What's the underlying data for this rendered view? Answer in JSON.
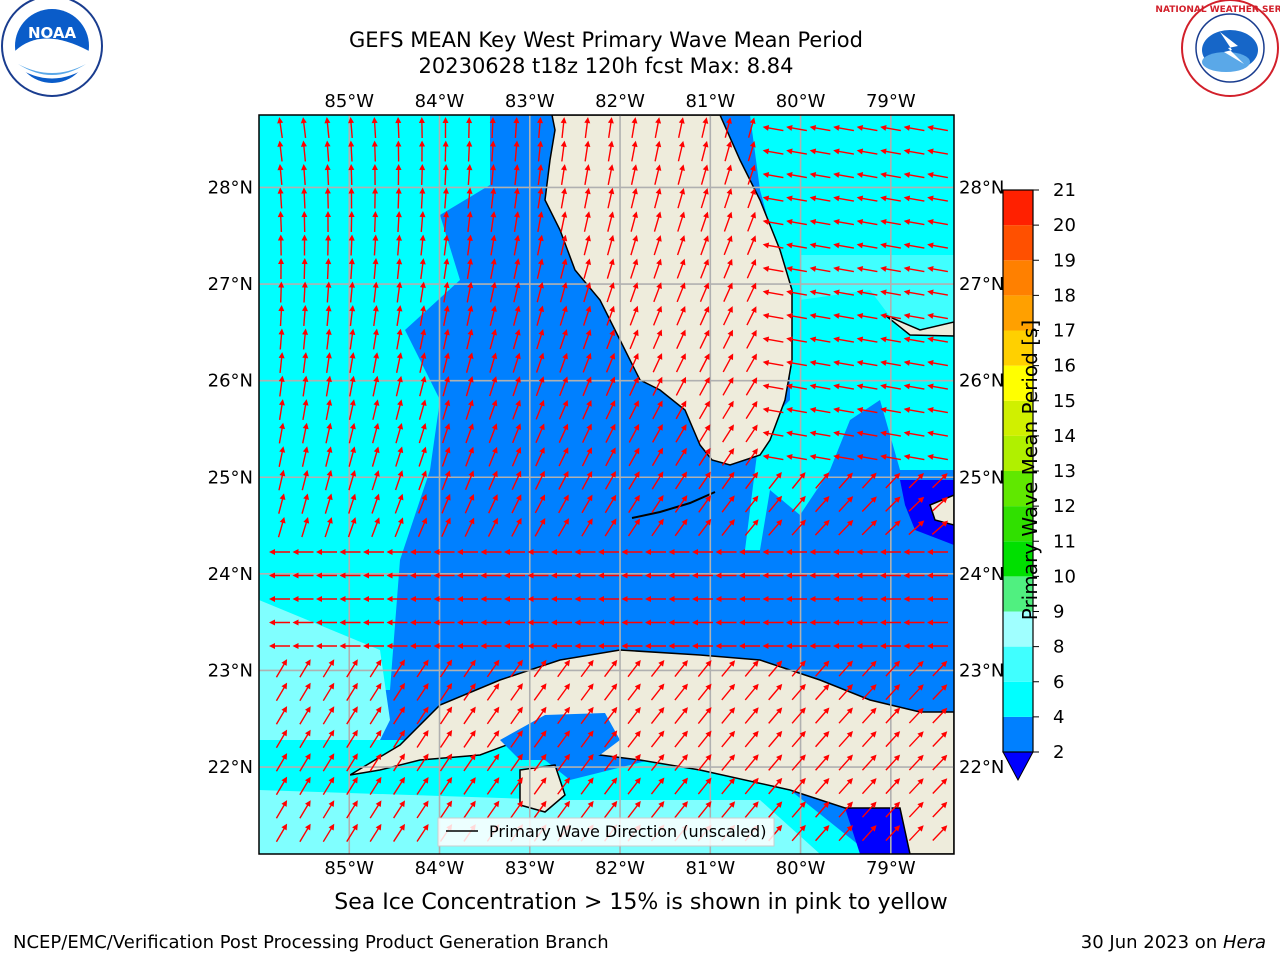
{
  "header": {
    "title_line1": "GEFS MEAN Key West Primary Wave Mean Period",
    "title_line2": "20230628 t18z 120h fcst   Max: 8.84"
  },
  "logos": {
    "left": {
      "icon": "noaa-logo",
      "text": "NOAA"
    },
    "right": {
      "icon": "nws-logo",
      "text": "NATIONAL WEATHER SERVICE"
    }
  },
  "map": {
    "lon_labels": [
      "85°W",
      "84°W",
      "83°W",
      "82°W",
      "81°W",
      "80°W",
      "79°W"
    ],
    "lon_values": [
      -85,
      -84,
      -83,
      -82,
      -81,
      -80,
      -79
    ],
    "lat_labels": [
      "28°N",
      "27°N",
      "26°N",
      "25°N",
      "24°N",
      "23°N",
      "22°N"
    ],
    "lat_values": [
      28,
      27,
      26,
      25,
      24,
      23,
      22
    ],
    "extent": {
      "lon": [
        -86,
        -78.3
      ],
      "lat": [
        21.1,
        28.75
      ]
    },
    "legend_label": "Primary Wave Direction (unscaled)",
    "colors": {
      "land": "#eeecdc",
      "water_cyan": "#00ffff",
      "water_blue": "#0080ff",
      "water_lightcyan": "#80ffff",
      "water_darkblue": "#0000ff",
      "arrow": "#ff0000",
      "grid": "#b0b0b0"
    }
  },
  "colorbar": {
    "label": "Primary Wave Mean Period [s]",
    "ticks": [
      "2",
      "4",
      "6",
      "8",
      "9",
      "10",
      "11",
      "12",
      "13",
      "14",
      "15",
      "16",
      "17",
      "18",
      "19",
      "20",
      "21"
    ],
    "colors": [
      "#0080ff",
      "#00ffff",
      "#40ffff",
      "#a0ffff",
      "#50f080",
      "#00e000",
      "#30e000",
      "#60e800",
      "#b0f000",
      "#d0f000",
      "#ffff00",
      "#ffd000",
      "#ffa000",
      "#ff8000",
      "#ff5000",
      "#ff2000"
    ],
    "under_color": "#0000ff"
  },
  "note": "Sea Ice Concentration > 15% is shown in pink to yellow",
  "footer": {
    "left": "NCEP/EMC/Verification Post Processing Product Generation Branch",
    "right_date": "30 Jun 2023 on ",
    "right_host": "Hera"
  }
}
